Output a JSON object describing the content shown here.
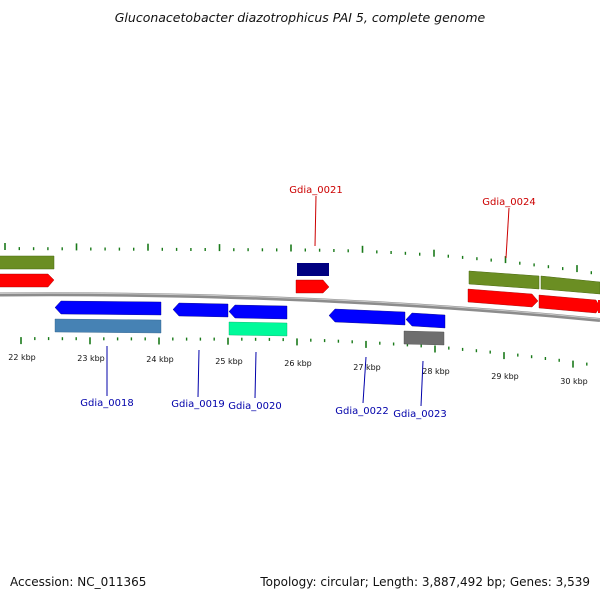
{
  "title": "Gluconacetobacter diazotrophicus PAI 5, complete genome",
  "accession": "Accession: NC_011365",
  "summary": "Topology: circular; Length: 3,887,492 bp; Genes: 3,539",
  "colors": {
    "backbone": "#8c8c8c",
    "tick": "#1a7a1a",
    "label_forward": "#cc0000",
    "label_reverse": "#0000aa",
    "rrna_green": "#6b8e23",
    "cds_red": "#ff0000",
    "cds_blue": "#0000ff",
    "navy": "#000080",
    "steelblue": "#4682b4",
    "springgreen": "#00fa9a",
    "grey": "#6e6e6e"
  },
  "scale": {
    "labels": [
      "22 kbp",
      "23 kbp",
      "24 kbp",
      "25 kbp",
      "26 kbp",
      "27 kbp",
      "28 kbp",
      "29 kbp",
      "30 kbp"
    ]
  },
  "genes": [
    {
      "label": "Gdia_0018",
      "strand": "reverse"
    },
    {
      "label": "Gdia_0019",
      "strand": "reverse"
    },
    {
      "label": "Gdia_0020",
      "strand": "reverse"
    },
    {
      "label": "Gdia_0021",
      "strand": "forward"
    },
    {
      "label": "Gdia_0022",
      "strand": "reverse"
    },
    {
      "label": "Gdia_0023",
      "strand": "reverse"
    },
    {
      "label": "Gdia_0024",
      "strand": "forward"
    }
  ]
}
